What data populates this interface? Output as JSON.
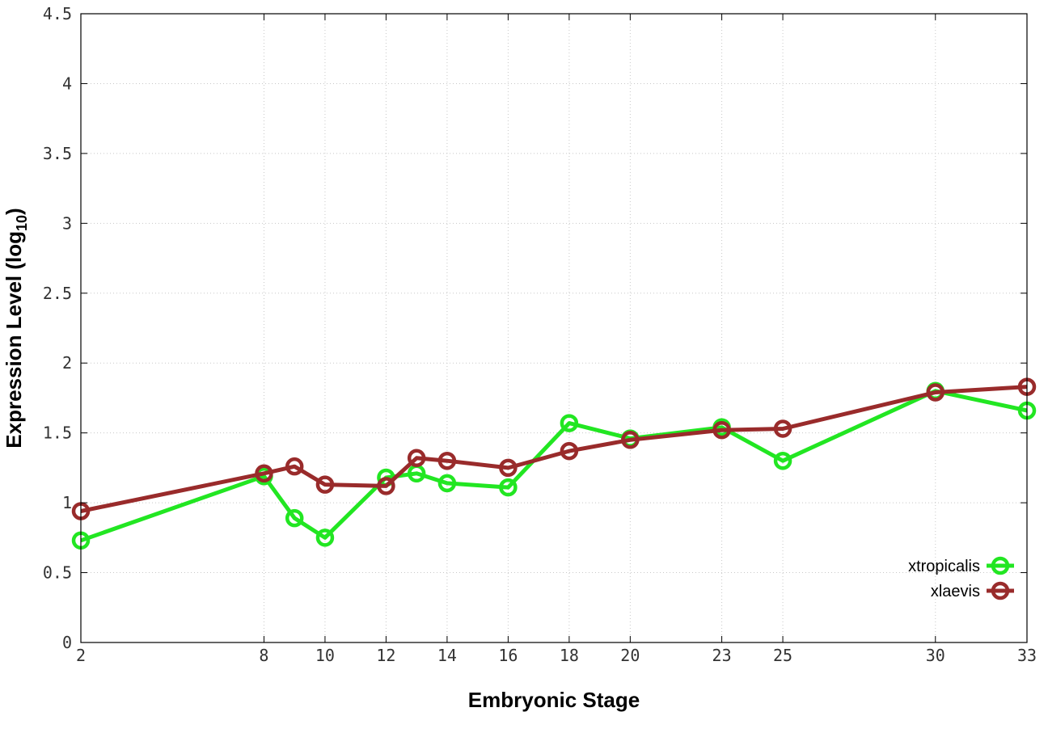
{
  "chart_data": {
    "type": "line",
    "title": "",
    "xlabel": "Embryonic Stage",
    "ylabel_main": "Expression Level (log",
    "ylabel_sub": "10",
    "ylabel_close": ")",
    "ylim": [
      0,
      4.5
    ],
    "xlim": [
      2,
      33
    ],
    "x_ticks": [
      2,
      8,
      10,
      12,
      14,
      16,
      18,
      20,
      23,
      25,
      30,
      33
    ],
    "y_ticks": [
      0,
      0.5,
      1,
      1.5,
      2,
      2.5,
      3,
      3.5,
      4,
      4.5
    ],
    "y_tick_labels": [
      "0",
      "0.5",
      "1",
      "1.5",
      "2",
      "2.5",
      "3",
      "3.5",
      "4",
      "4.5"
    ],
    "grid": true,
    "legend_position": "bottom-right",
    "series": [
      {
        "name": "xtropicalis",
        "color": "#22e622",
        "x": [
          2,
          8,
          9,
          10,
          12,
          13,
          14,
          16,
          18,
          20,
          23,
          25,
          30,
          33
        ],
        "values": [
          0.73,
          1.19,
          0.89,
          0.75,
          1.18,
          1.21,
          1.14,
          1.11,
          1.57,
          1.46,
          1.54,
          1.3,
          1.8,
          1.66
        ]
      },
      {
        "name": "xlaevis",
        "color": "#992b2b",
        "x": [
          2,
          8,
          9,
          10,
          12,
          13,
          14,
          16,
          18,
          20,
          23,
          25,
          30,
          33
        ],
        "values": [
          0.94,
          1.21,
          1.26,
          1.13,
          1.12,
          1.32,
          1.3,
          1.25,
          1.37,
          1.45,
          1.52,
          1.53,
          1.79,
          1.83
        ]
      }
    ]
  }
}
